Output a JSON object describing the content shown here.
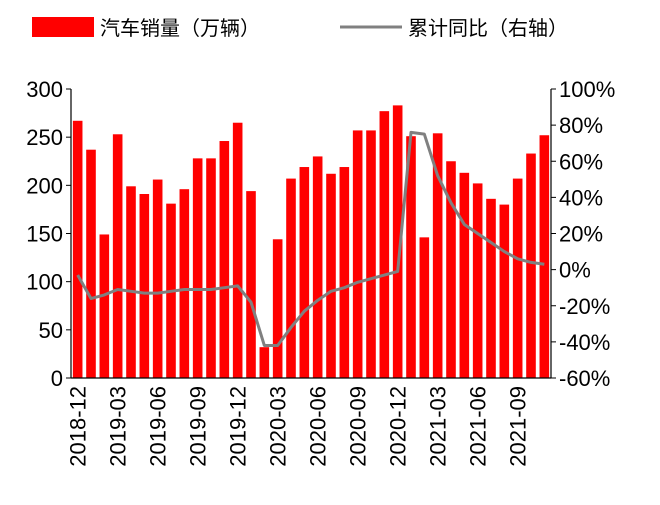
{
  "chart_data": {
    "type": "bar+line",
    "legend": {
      "placement": "top",
      "items": [
        {
          "label": "汽车销量（万辆）",
          "kind": "bar",
          "color": "#ff0000"
        },
        {
          "label": "累计同比（右轴）",
          "kind": "line",
          "color": "#808080"
        }
      ]
    },
    "x": [
      "2018-12",
      "2019-01",
      "2019-02",
      "2019-03",
      "2019-04",
      "2019-05",
      "2019-06",
      "2019-07",
      "2019-08",
      "2019-09",
      "2019-10",
      "2019-11",
      "2019-12",
      "2020-01",
      "2020-02",
      "2020-03",
      "2020-04",
      "2020-05",
      "2020-06",
      "2020-07",
      "2020-08",
      "2020-09",
      "2020-10",
      "2020-11",
      "2020-12",
      "2021-01",
      "2021-02",
      "2021-03",
      "2021-04",
      "2021-05",
      "2021-06",
      "2021-07",
      "2021-08",
      "2021-09",
      "2021-10",
      "2021-11"
    ],
    "x_tick_labels": [
      "2018-12",
      "2019-03",
      "2019-06",
      "2019-09",
      "2019-12",
      "2020-03",
      "2020-06",
      "2020-09",
      "2020-12",
      "2021-03",
      "2021-06",
      "2021-09"
    ],
    "series": [
      {
        "name": "汽车销量（万辆）",
        "axis": "left",
        "type": "bar",
        "color": "#ff0000",
        "values": [
          267,
          237,
          149,
          253,
          199,
          191,
          206,
          181,
          196,
          228,
          228,
          246,
          265,
          194,
          32,
          144,
          207,
          219,
          230,
          212,
          219,
          257,
          257,
          277,
          283,
          251,
          146,
          254,
          225,
          213,
          202,
          186,
          180,
          207,
          233,
          252
        ]
      },
      {
        "name": "累计同比（右轴）",
        "axis": "right",
        "type": "line",
        "color": "#808080",
        "values": [
          -3,
          -16,
          -14,
          -11,
          -12,
          -13,
          -13,
          -12,
          -11,
          -11,
          -11,
          -10,
          -9,
          -18,
          -42,
          -42,
          -32,
          -23,
          -17,
          -12,
          -10,
          -7,
          -5,
          -3,
          -1,
          76,
          75,
          52,
          37,
          25,
          20,
          15,
          10,
          6,
          4,
          3
        ]
      }
    ],
    "yaxis_left": {
      "min": 0,
      "max": 300,
      "ticks": [
        0,
        50,
        100,
        150,
        200,
        250,
        300
      ],
      "tick_labels": [
        "0",
        "50",
        "100",
        "150",
        "200",
        "250",
        "300"
      ]
    },
    "yaxis_right": {
      "min": -60,
      "max": 100,
      "ticks": [
        -60,
        -40,
        -20,
        0,
        20,
        40,
        60,
        80,
        100
      ],
      "tick_labels": [
        "-60%",
        "-40%",
        "-20%",
        "0%",
        "20%",
        "40%",
        "60%",
        "80%",
        "100%"
      ]
    },
    "grid": false
  }
}
